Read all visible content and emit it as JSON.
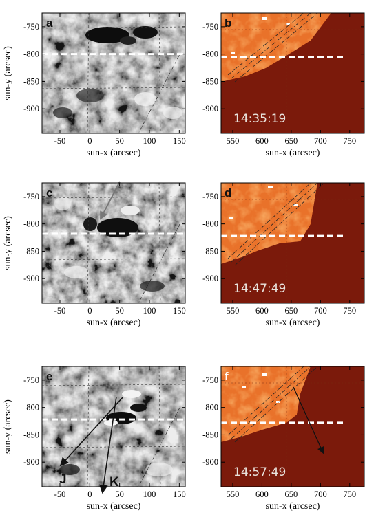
{
  "figure": {
    "left_panels": {
      "x_tick_labels": [
        "-50",
        "0",
        "50",
        "100",
        "150"
      ],
      "y_tick_labels": [
        "-750",
        "-800",
        "-850",
        "-900"
      ],
      "xlabel": "sun-x (arcsec)",
      "ylabel": "sun-y (arcsec)"
    },
    "right_panels": {
      "x_tick_labels": [
        "550",
        "600",
        "650",
        "700",
        "750"
      ],
      "y_tick_labels": [
        "-750",
        "-800",
        "-850",
        "-900"
      ],
      "xlabel": "sun-x (arcsec)"
    },
    "panels": [
      {
        "label": "a",
        "row": 0,
        "side": "left"
      },
      {
        "label": "b",
        "row": 0,
        "side": "right",
        "time": "14:35:19"
      },
      {
        "label": "c",
        "row": 1,
        "side": "left"
      },
      {
        "label": "d",
        "row": 1,
        "side": "right",
        "time": "14:47:49"
      },
      {
        "label": "e",
        "row": 2,
        "side": "left",
        "arrow_labels": [
          "J",
          "K"
        ]
      },
      {
        "label": "f",
        "row": 2,
        "side": "right",
        "time": "14:57:49"
      }
    ]
  },
  "chart_data": [
    {
      "type": "heatmap",
      "panel": "a",
      "xlabel": "sun-x (arcsec)",
      "ylabel": "sun-y (arcsec)",
      "xlim": [
        -80,
        160
      ],
      "ylim": [
        -945,
        -725
      ],
      "x_ticks": [
        -50,
        0,
        50,
        100,
        150
      ],
      "y_ticks": [
        -750,
        -800,
        -850,
        -900
      ],
      "dashed_line_y": -800
    },
    {
      "type": "heatmap",
      "panel": "b",
      "xlabel": "sun-x (arcsec)",
      "xlim": [
        530,
        775
      ],
      "ylim": [
        -945,
        -725
      ],
      "x_ticks": [
        550,
        600,
        650,
        700,
        750
      ],
      "y_ticks": [
        -750,
        -800,
        -850,
        -900
      ],
      "dashed_line_y": -806,
      "time": "14:35:19"
    },
    {
      "type": "heatmap",
      "panel": "c",
      "xlabel": "sun-x (arcsec)",
      "ylabel": "sun-y (arcsec)",
      "xlim": [
        -80,
        160
      ],
      "ylim": [
        -945,
        -725
      ],
      "x_ticks": [
        -50,
        0,
        50,
        100,
        150
      ],
      "y_ticks": [
        -750,
        -800,
        -850,
        -900
      ],
      "dashed_line_y": -818
    },
    {
      "type": "heatmap",
      "panel": "d",
      "xlabel": "sun-x (arcsec)",
      "xlim": [
        530,
        775
      ],
      "ylim": [
        -945,
        -725
      ],
      "x_ticks": [
        550,
        600,
        650,
        700,
        750
      ],
      "y_ticks": [
        -750,
        -800,
        -850,
        -900
      ],
      "dashed_line_y": -822,
      "time": "14:47:49"
    },
    {
      "type": "heatmap",
      "panel": "e",
      "xlabel": "sun-x (arcsec)",
      "ylabel": "sun-y (arcsec)",
      "xlim": [
        -80,
        160
      ],
      "ylim": [
        -945,
        -725
      ],
      "x_ticks": [
        -50,
        0,
        50,
        100,
        150
      ],
      "y_ticks": [
        -750,
        -800,
        -850,
        -900
      ],
      "dashed_line_y": -822
    },
    {
      "type": "heatmap",
      "panel": "f",
      "xlabel": "sun-x (arcsec)",
      "xlim": [
        530,
        775
      ],
      "ylim": [
        -945,
        -725
      ],
      "x_ticks": [
        550,
        600,
        650,
        700,
        750
      ],
      "y_ticks": [
        -750,
        -800,
        -850,
        -900
      ],
      "dashed_line_y": -828,
      "time": "14:57:49"
    }
  ]
}
